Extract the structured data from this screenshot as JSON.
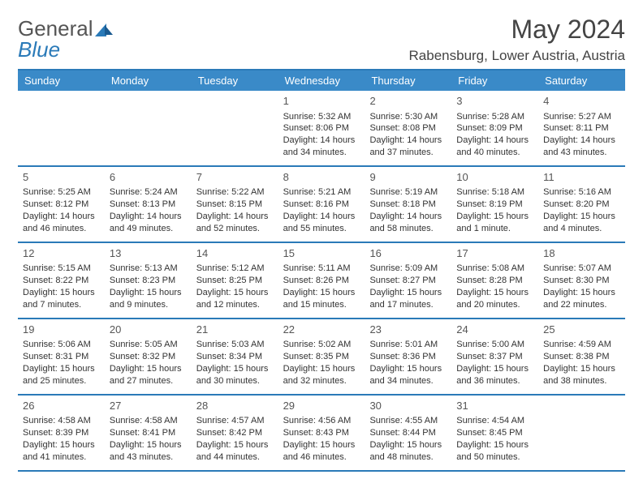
{
  "logo": {
    "part1": "General",
    "part2": "Blue"
  },
  "title": "May 2024",
  "location": "Rabensburg, Lower Austria, Austria",
  "colors": {
    "accent": "#3a8ac8",
    "rule": "#2a7ab8",
    "text": "#333"
  },
  "dayHeaders": [
    "Sunday",
    "Monday",
    "Tuesday",
    "Wednesday",
    "Thursday",
    "Friday",
    "Saturday"
  ],
  "weeks": [
    [
      null,
      null,
      null,
      {
        "n": "1",
        "sr": "Sunrise: 5:32 AM",
        "ss": "Sunset: 8:06 PM",
        "d1": "Daylight: 14 hours",
        "d2": "and 34 minutes."
      },
      {
        "n": "2",
        "sr": "Sunrise: 5:30 AM",
        "ss": "Sunset: 8:08 PM",
        "d1": "Daylight: 14 hours",
        "d2": "and 37 minutes."
      },
      {
        "n": "3",
        "sr": "Sunrise: 5:28 AM",
        "ss": "Sunset: 8:09 PM",
        "d1": "Daylight: 14 hours",
        "d2": "and 40 minutes."
      },
      {
        "n": "4",
        "sr": "Sunrise: 5:27 AM",
        "ss": "Sunset: 8:11 PM",
        "d1": "Daylight: 14 hours",
        "d2": "and 43 minutes."
      }
    ],
    [
      {
        "n": "5",
        "sr": "Sunrise: 5:25 AM",
        "ss": "Sunset: 8:12 PM",
        "d1": "Daylight: 14 hours",
        "d2": "and 46 minutes."
      },
      {
        "n": "6",
        "sr": "Sunrise: 5:24 AM",
        "ss": "Sunset: 8:13 PM",
        "d1": "Daylight: 14 hours",
        "d2": "and 49 minutes."
      },
      {
        "n": "7",
        "sr": "Sunrise: 5:22 AM",
        "ss": "Sunset: 8:15 PM",
        "d1": "Daylight: 14 hours",
        "d2": "and 52 minutes."
      },
      {
        "n": "8",
        "sr": "Sunrise: 5:21 AM",
        "ss": "Sunset: 8:16 PM",
        "d1": "Daylight: 14 hours",
        "d2": "and 55 minutes."
      },
      {
        "n": "9",
        "sr": "Sunrise: 5:19 AM",
        "ss": "Sunset: 8:18 PM",
        "d1": "Daylight: 14 hours",
        "d2": "and 58 minutes."
      },
      {
        "n": "10",
        "sr": "Sunrise: 5:18 AM",
        "ss": "Sunset: 8:19 PM",
        "d1": "Daylight: 15 hours",
        "d2": "and 1 minute."
      },
      {
        "n": "11",
        "sr": "Sunrise: 5:16 AM",
        "ss": "Sunset: 8:20 PM",
        "d1": "Daylight: 15 hours",
        "d2": "and 4 minutes."
      }
    ],
    [
      {
        "n": "12",
        "sr": "Sunrise: 5:15 AM",
        "ss": "Sunset: 8:22 PM",
        "d1": "Daylight: 15 hours",
        "d2": "and 7 minutes."
      },
      {
        "n": "13",
        "sr": "Sunrise: 5:13 AM",
        "ss": "Sunset: 8:23 PM",
        "d1": "Daylight: 15 hours",
        "d2": "and 9 minutes."
      },
      {
        "n": "14",
        "sr": "Sunrise: 5:12 AM",
        "ss": "Sunset: 8:25 PM",
        "d1": "Daylight: 15 hours",
        "d2": "and 12 minutes."
      },
      {
        "n": "15",
        "sr": "Sunrise: 5:11 AM",
        "ss": "Sunset: 8:26 PM",
        "d1": "Daylight: 15 hours",
        "d2": "and 15 minutes."
      },
      {
        "n": "16",
        "sr": "Sunrise: 5:09 AM",
        "ss": "Sunset: 8:27 PM",
        "d1": "Daylight: 15 hours",
        "d2": "and 17 minutes."
      },
      {
        "n": "17",
        "sr": "Sunrise: 5:08 AM",
        "ss": "Sunset: 8:28 PM",
        "d1": "Daylight: 15 hours",
        "d2": "and 20 minutes."
      },
      {
        "n": "18",
        "sr": "Sunrise: 5:07 AM",
        "ss": "Sunset: 8:30 PM",
        "d1": "Daylight: 15 hours",
        "d2": "and 22 minutes."
      }
    ],
    [
      {
        "n": "19",
        "sr": "Sunrise: 5:06 AM",
        "ss": "Sunset: 8:31 PM",
        "d1": "Daylight: 15 hours",
        "d2": "and 25 minutes."
      },
      {
        "n": "20",
        "sr": "Sunrise: 5:05 AM",
        "ss": "Sunset: 8:32 PM",
        "d1": "Daylight: 15 hours",
        "d2": "and 27 minutes."
      },
      {
        "n": "21",
        "sr": "Sunrise: 5:03 AM",
        "ss": "Sunset: 8:34 PM",
        "d1": "Daylight: 15 hours",
        "d2": "and 30 minutes."
      },
      {
        "n": "22",
        "sr": "Sunrise: 5:02 AM",
        "ss": "Sunset: 8:35 PM",
        "d1": "Daylight: 15 hours",
        "d2": "and 32 minutes."
      },
      {
        "n": "23",
        "sr": "Sunrise: 5:01 AM",
        "ss": "Sunset: 8:36 PM",
        "d1": "Daylight: 15 hours",
        "d2": "and 34 minutes."
      },
      {
        "n": "24",
        "sr": "Sunrise: 5:00 AM",
        "ss": "Sunset: 8:37 PM",
        "d1": "Daylight: 15 hours",
        "d2": "and 36 minutes."
      },
      {
        "n": "25",
        "sr": "Sunrise: 4:59 AM",
        "ss": "Sunset: 8:38 PM",
        "d1": "Daylight: 15 hours",
        "d2": "and 38 minutes."
      }
    ],
    [
      {
        "n": "26",
        "sr": "Sunrise: 4:58 AM",
        "ss": "Sunset: 8:39 PM",
        "d1": "Daylight: 15 hours",
        "d2": "and 41 minutes."
      },
      {
        "n": "27",
        "sr": "Sunrise: 4:58 AM",
        "ss": "Sunset: 8:41 PM",
        "d1": "Daylight: 15 hours",
        "d2": "and 43 minutes."
      },
      {
        "n": "28",
        "sr": "Sunrise: 4:57 AM",
        "ss": "Sunset: 8:42 PM",
        "d1": "Daylight: 15 hours",
        "d2": "and 44 minutes."
      },
      {
        "n": "29",
        "sr": "Sunrise: 4:56 AM",
        "ss": "Sunset: 8:43 PM",
        "d1": "Daylight: 15 hours",
        "d2": "and 46 minutes."
      },
      {
        "n": "30",
        "sr": "Sunrise: 4:55 AM",
        "ss": "Sunset: 8:44 PM",
        "d1": "Daylight: 15 hours",
        "d2": "and 48 minutes."
      },
      {
        "n": "31",
        "sr": "Sunrise: 4:54 AM",
        "ss": "Sunset: 8:45 PM",
        "d1": "Daylight: 15 hours",
        "d2": "and 50 minutes."
      },
      null
    ]
  ]
}
